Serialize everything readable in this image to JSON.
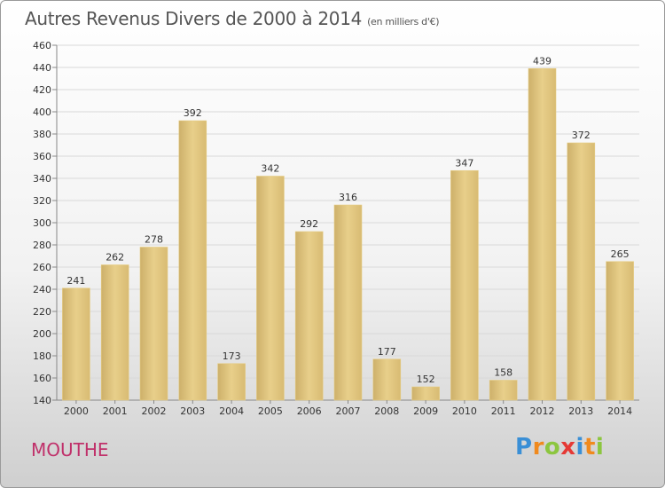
{
  "chart_data": {
    "type": "bar",
    "title": "Autres Revenus Divers de 2000 à 2014",
    "subtitle": "(en milliers d'€)",
    "categories": [
      "2000",
      "2001",
      "2002",
      "2003",
      "2004",
      "2005",
      "2006",
      "2007",
      "2008",
      "2009",
      "2010",
      "2011",
      "2012",
      "2013",
      "2014"
    ],
    "values": [
      241,
      262,
      278,
      392,
      173,
      342,
      292,
      316,
      177,
      152,
      347,
      158,
      439,
      372,
      265
    ],
    "ylim": [
      140,
      460
    ],
    "yticks": [
      140,
      160,
      180,
      200,
      220,
      240,
      260,
      280,
      300,
      320,
      340,
      360,
      380,
      400,
      420,
      440,
      460
    ],
    "grid": true,
    "bar_color": "#e8cf8a"
  },
  "location": "MOUTHE",
  "logo": {
    "text": "Proxiti",
    "letter_colors": [
      "#3a8fd6",
      "#f08a1e",
      "#8cc63f",
      "#e53935",
      "#3a8fd6",
      "#f08a1e",
      "#8cc63f"
    ]
  }
}
